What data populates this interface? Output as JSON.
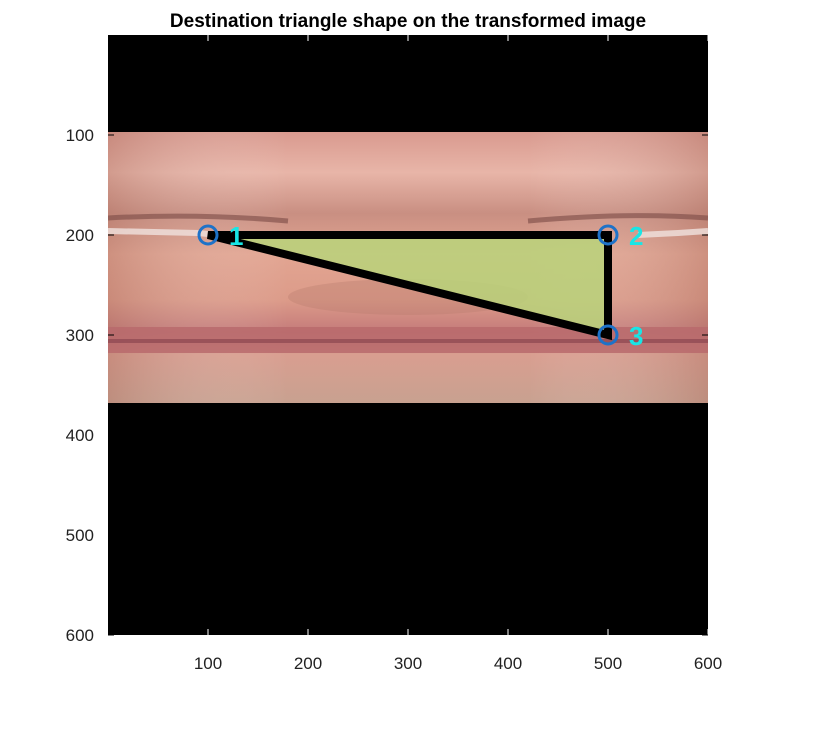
{
  "chart_data": {
    "type": "scatter",
    "title": "Destination triangle shape on the transformed image",
    "xlabel": "",
    "ylabel": "",
    "xlim": [
      0,
      600
    ],
    "ylim": [
      0,
      600
    ],
    "y_direction": "reversed",
    "grid": false,
    "xticks": [
      100,
      200,
      300,
      400,
      500,
      600
    ],
    "yticks": [
      100,
      200,
      300,
      400,
      500,
      600
    ],
    "image_extent": {
      "x": [
        0,
        600
      ],
      "y": [
        97,
        368
      ],
      "description_visible": "warped face photo strip on black background"
    },
    "triangle": {
      "vertices": [
        {
          "label": "1",
          "x": 100,
          "y": 200
        },
        {
          "label": "2",
          "x": 500,
          "y": 200
        },
        {
          "label": "3",
          "x": 500,
          "y": 300
        }
      ],
      "edge_color": "#000000",
      "fill_color": "#b8d47a",
      "marker_color": "#1e72c8",
      "label_color": "#18e6e6"
    },
    "background_color": "#000000"
  }
}
